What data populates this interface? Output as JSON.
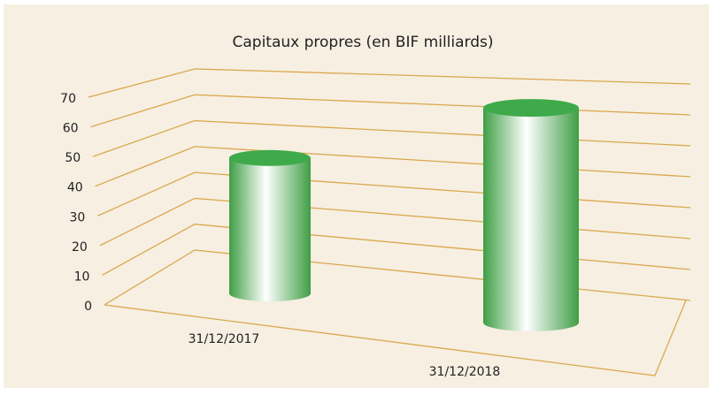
{
  "chart_data": {
    "type": "bar",
    "title": "Capitaux propres (en BIF milliards)",
    "categories": [
      "31/12/2017",
      "31/12/2018"
    ],
    "values": [
      47,
      69
    ],
    "color": "#3faa4a",
    "ylim": [
      0,
      70
    ],
    "yticks": [
      0,
      10,
      20,
      30,
      40,
      50,
      60,
      70
    ],
    "grid": true
  }
}
